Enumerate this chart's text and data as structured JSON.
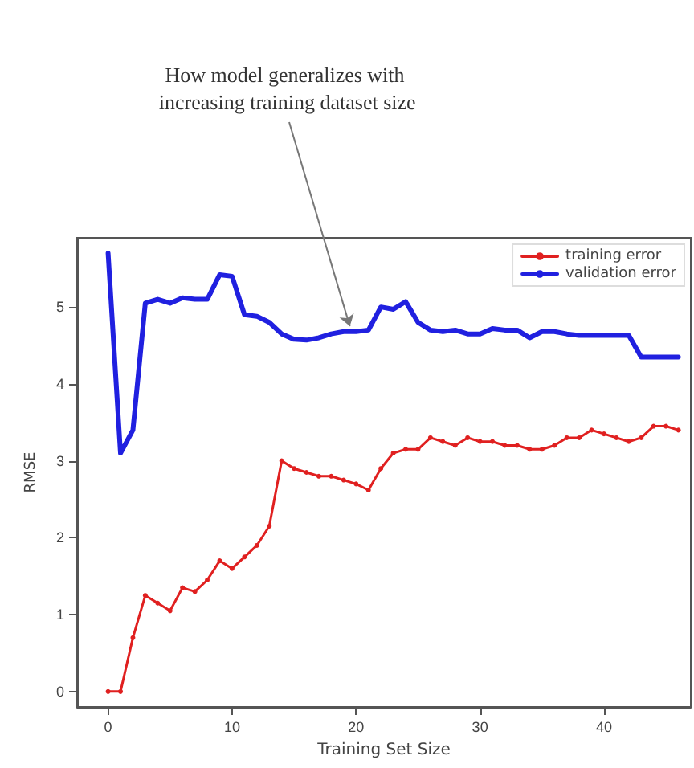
{
  "chart_data": {
    "type": "line",
    "xlabel": "Training Set Size",
    "ylabel": "RMSE",
    "x": [
      0,
      1,
      2,
      3,
      4,
      5,
      6,
      7,
      8,
      9,
      10,
      11,
      12,
      13,
      14,
      15,
      16,
      17,
      18,
      19,
      20,
      21,
      22,
      23,
      24,
      25,
      26,
      27,
      28,
      29,
      30,
      31,
      32,
      33,
      34,
      35,
      36,
      37,
      38,
      39,
      40,
      41,
      42,
      43,
      44,
      45,
      46
    ],
    "series": [
      {
        "name": "training error",
        "color": "#e02020",
        "marker": "circle",
        "values": [
          0,
          0,
          0.7,
          1.25,
          1.15,
          1.05,
          1.35,
          1.3,
          1.45,
          1.7,
          1.6,
          1.75,
          1.9,
          2.15,
          3.0,
          2.9,
          2.85,
          2.8,
          2.8,
          2.75,
          2.7,
          2.62,
          2.9,
          3.1,
          3.15,
          3.15,
          3.3,
          3.25,
          3.2,
          3.3,
          3.25,
          3.25,
          3.2,
          3.2,
          3.15,
          3.15,
          3.2,
          3.3,
          3.3,
          3.4,
          3.35,
          3.3,
          3.25,
          3.3,
          3.45,
          3.45,
          3.4
        ]
      },
      {
        "name": "validation error",
        "color": "#2020e0",
        "marker": "none",
        "values": [
          5.7,
          3.1,
          3.4,
          5.05,
          5.1,
          5.05,
          5.12,
          5.1,
          5.1,
          5.42,
          5.4,
          4.9,
          4.88,
          4.8,
          4.65,
          4.58,
          4.57,
          4.6,
          4.65,
          4.68,
          4.68,
          4.7,
          5.0,
          4.97,
          5.07,
          4.8,
          4.7,
          4.68,
          4.7,
          4.65,
          4.65,
          4.72,
          4.7,
          4.7,
          4.6,
          4.68,
          4.68,
          4.65,
          4.63,
          4.63,
          4.63,
          4.63,
          4.63,
          4.35,
          4.35,
          4.35,
          4.35
        ]
      }
    ],
    "xlim": [
      -2.5,
      47
    ],
    "xticks": [
      0,
      10,
      20,
      30,
      40
    ],
    "ylim": [
      -0.2,
      5.9
    ],
    "yticks": [
      0,
      1,
      2,
      3,
      4,
      5
    ],
    "grid": false,
    "legend": "top right",
    "annotations": [
      {
        "text": "How model generalizes with increasing training dataset size",
        "x": 19.5,
        "y": 4.75
      }
    ]
  }
}
